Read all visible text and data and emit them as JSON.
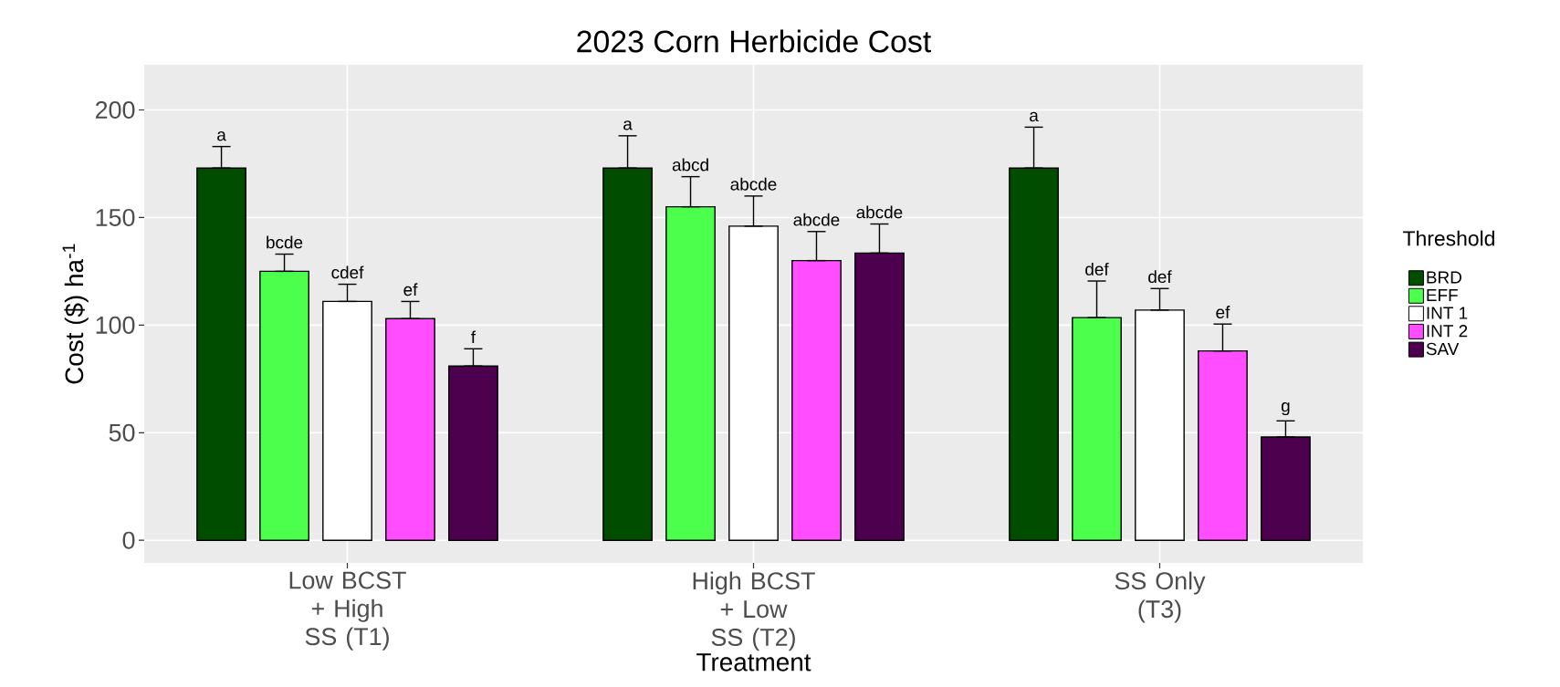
{
  "chart_data": {
    "type": "bar",
    "title": "2023 Corn Herbicide Cost",
    "xlabel": "Treatment",
    "ylabel": "Cost ($) ha$^{-1}$",
    "legend_title": "Threshold",
    "categories": [
      "Low BCST + High SS (T1)",
      "High BCST + Low SS (T2)",
      "SS Only (T3)"
    ],
    "series": [
      {
        "name": "BRD",
        "color": "#004d00",
        "values": [
          173,
          173,
          173
        ],
        "errors": [
          [
            173,
            183
          ],
          [
            173,
            188
          ],
          [
            173,
            192
          ]
        ],
        "value_labels": [
          "a",
          "a",
          "a"
        ]
      },
      {
        "name": "EFF",
        "color": "#4dff4d",
        "values": [
          125,
          155,
          103.5
        ],
        "errors": [
          [
            125,
            133
          ],
          [
            155,
            169
          ],
          [
            103.5,
            120.5
          ]
        ],
        "value_labels": [
          "bcde",
          "abcd",
          "def"
        ]
      },
      {
        "name": "INT 1",
        "color": "#ffffff",
        "values": [
          111,
          146,
          107
        ],
        "errors": [
          [
            111,
            119
          ],
          [
            146,
            160
          ],
          [
            107,
            117
          ]
        ],
        "value_labels": [
          "cdef",
          "abcde",
          "def"
        ]
      },
      {
        "name": "INT 2",
        "color": "#ff4dff",
        "values": [
          103,
          130,
          88
        ],
        "errors": [
          [
            103,
            111
          ],
          [
            130,
            143.5
          ],
          [
            88,
            100.5
          ]
        ],
        "value_labels": [
          "ef",
          "abcde",
          "ef"
        ]
      },
      {
        "name": "SAV",
        "color": "#4d004d",
        "values": [
          81,
          133.5,
          48
        ],
        "errors": [
          [
            81,
            89
          ],
          [
            133.5,
            147
          ],
          [
            48,
            55.5
          ]
        ],
        "value_labels": [
          "f",
          "abcde",
          "g"
        ]
      }
    ],
    "ylim": [
      -10.5,
      221
    ],
    "yticks": [
      0,
      50,
      100,
      150,
      200
    ],
    "grid": true,
    "legend": "right"
  }
}
